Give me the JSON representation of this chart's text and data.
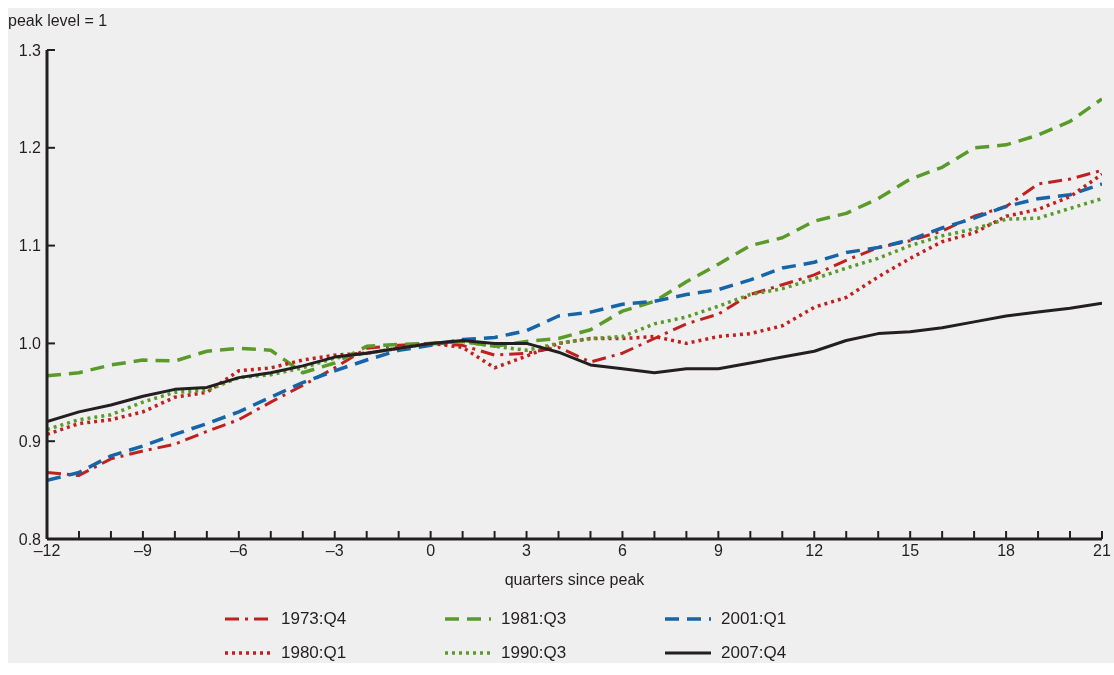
{
  "chart_data": {
    "type": "line",
    "ylabel": "peak level = 1",
    "xlabel": "quarters since peak",
    "x": [
      -12,
      -11,
      -10,
      -9,
      -8,
      -7,
      -6,
      -5,
      -4,
      -3,
      -2,
      -1,
      0,
      1,
      2,
      3,
      4,
      5,
      6,
      7,
      8,
      9,
      10,
      11,
      12,
      13,
      14,
      15,
      16,
      17,
      18,
      19,
      20,
      21
    ],
    "series": [
      {
        "name": "1973:Q4",
        "color": "#c0211f",
        "line_style": "dashdot",
        "values": [
          0.868,
          0.865,
          0.882,
          0.89,
          0.897,
          0.91,
          0.922,
          0.94,
          0.957,
          0.975,
          0.995,
          0.998,
          1.0,
          0.998,
          0.988,
          0.99,
          0.996,
          0.981,
          0.99,
          1.005,
          1.02,
          1.03,
          1.05,
          1.06,
          1.07,
          1.085,
          1.098,
          1.105,
          1.115,
          1.13,
          1.14,
          1.163,
          1.168,
          1.177
        ]
      },
      {
        "name": "1981:Q3",
        "color": "#5a9a2a",
        "line_style": "dashed",
        "values": [
          0.967,
          0.97,
          0.978,
          0.983,
          0.982,
          0.992,
          0.995,
          0.993,
          0.97,
          0.98,
          0.997,
          0.999,
          1.0,
          1.002,
          0.997,
          1.002,
          1.005,
          1.014,
          1.033,
          1.043,
          1.063,
          1.081,
          1.1,
          1.108,
          1.125,
          1.133,
          1.148,
          1.168,
          1.18,
          1.2,
          1.203,
          1.213,
          1.227,
          1.25
        ]
      },
      {
        "name": "2001:Q1",
        "color": "#1565a8",
        "line_style": "dashed",
        "values": [
          0.86,
          0.868,
          0.885,
          0.895,
          0.907,
          0.918,
          0.93,
          0.945,
          0.96,
          0.972,
          0.983,
          0.993,
          0.998,
          1.004,
          1.006,
          1.013,
          1.028,
          1.032,
          1.04,
          1.043,
          1.05,
          1.055,
          1.065,
          1.077,
          1.083,
          1.093,
          1.098,
          1.106,
          1.118,
          1.128,
          1.14,
          1.148,
          1.152,
          1.163
        ]
      },
      {
        "name": "1980:Q1",
        "color": "#c0211f",
        "line_style": "dotted",
        "values": [
          0.907,
          0.918,
          0.922,
          0.93,
          0.945,
          0.95,
          0.972,
          0.975,
          0.983,
          0.988,
          0.99,
          0.995,
          1.0,
          0.996,
          0.975,
          0.987,
          1.0,
          1.005,
          1.005,
          1.007,
          1.0,
          1.007,
          1.01,
          1.018,
          1.037,
          1.047,
          1.068,
          1.087,
          1.104,
          1.113,
          1.13,
          1.137,
          1.15,
          1.173
        ]
      },
      {
        "name": "1990:Q3",
        "color": "#5a9a2a",
        "line_style": "dotted",
        "values": [
          0.912,
          0.922,
          0.927,
          0.94,
          0.95,
          0.952,
          0.965,
          0.968,
          0.975,
          0.985,
          0.99,
          0.995,
          1.0,
          1.002,
          0.997,
          0.993,
          1.0,
          1.005,
          1.007,
          1.02,
          1.027,
          1.038,
          1.05,
          1.056,
          1.066,
          1.077,
          1.087,
          1.1,
          1.11,
          1.117,
          1.127,
          1.128,
          1.138,
          1.148
        ]
      },
      {
        "name": "2007:Q4",
        "color": "#231f20",
        "line_style": "solid",
        "values": [
          0.92,
          0.93,
          0.937,
          0.946,
          0.953,
          0.955,
          0.965,
          0.97,
          0.977,
          0.986,
          0.99,
          0.995,
          1.0,
          1.003,
          1.0,
          1.0,
          0.991,
          0.978,
          0.974,
          0.97,
          0.974,
          0.974,
          0.98,
          0.986,
          0.992,
          1.003,
          1.01,
          1.012,
          1.016,
          1.022,
          1.028,
          1.032,
          1.036,
          1.041
        ]
      }
    ],
    "xlim": [
      -12,
      21
    ],
    "xticks": [
      {
        "value": -12,
        "label": "–12"
      },
      {
        "value": -11,
        "label": null
      },
      {
        "value": -10,
        "label": null
      },
      {
        "value": -9,
        "label": "–9"
      },
      {
        "value": -8,
        "label": null
      },
      {
        "value": -7,
        "label": null
      },
      {
        "value": -6,
        "label": "–6"
      },
      {
        "value": -5,
        "label": null
      },
      {
        "value": -4,
        "label": null
      },
      {
        "value": -3,
        "label": "–3"
      },
      {
        "value": -2,
        "label": null
      },
      {
        "value": -1,
        "label": null
      },
      0,
      {
        "value": 1,
        "label": null
      },
      {
        "value": 2,
        "label": null
      },
      3,
      {
        "value": 4,
        "label": null
      },
      {
        "value": 5,
        "label": null
      },
      6,
      {
        "value": 7,
        "label": null
      },
      {
        "value": 8,
        "label": null
      },
      9,
      {
        "value": 10,
        "label": null
      },
      {
        "value": 11,
        "label": null
      },
      12,
      {
        "value": 13,
        "label": null
      },
      {
        "value": 14,
        "label": null
      },
      15,
      {
        "value": 16,
        "label": null
      },
      {
        "value": 17,
        "label": null
      },
      18,
      {
        "value": 19,
        "label": null
      },
      {
        "value": 20,
        "label": null
      },
      21
    ],
    "ylim": [
      0.8,
      1.3
    ],
    "yticks": [
      0.8,
      0.9,
      {
        "value": 1.0,
        "label": "1.0"
      },
      1.1,
      1.2,
      1.3
    ],
    "grid": false,
    "legend": "bottom",
    "marker": "none"
  }
}
